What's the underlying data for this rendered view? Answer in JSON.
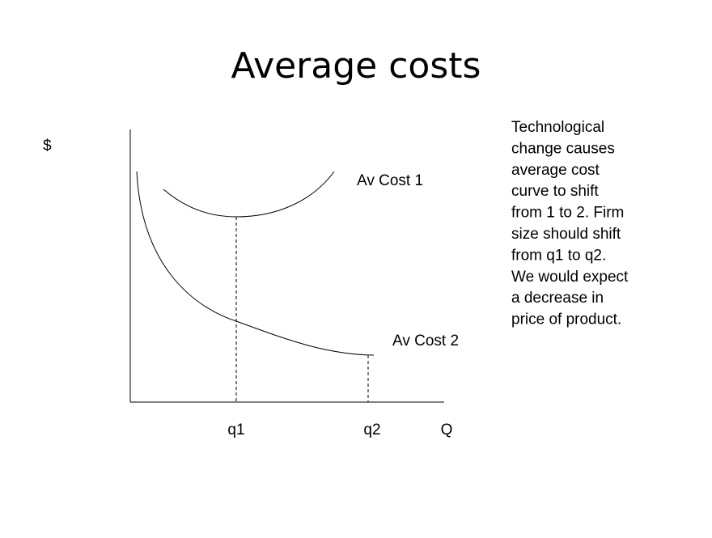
{
  "title": "Average costs",
  "diagram": {
    "y_axis_label": "$",
    "x_axis_label": "Q",
    "curve_labels": [
      "Av Cost 1",
      "Av Cost 2"
    ],
    "x_markers": [
      "q1",
      "q2"
    ]
  },
  "note": {
    "lines": [
      "Technological",
      "change causes",
      "average cost",
      "curve to shift",
      "from 1 to 2. Firm",
      "size should shift",
      "from q1 to q2.",
      "We would expect",
      "a decrease in",
      "price of product."
    ]
  }
}
